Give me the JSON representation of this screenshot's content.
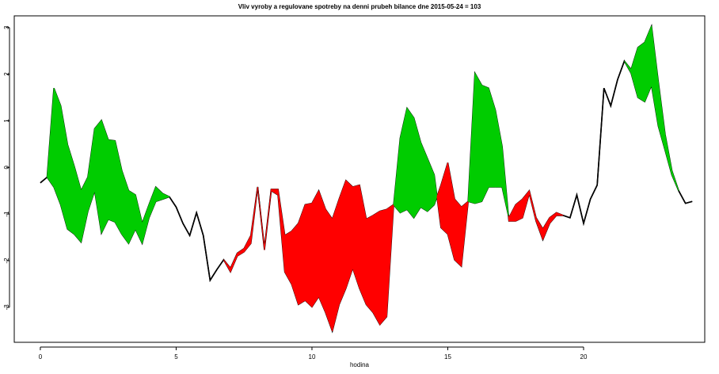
{
  "chart_data": {
    "type": "difference",
    "title": "Vliv vyroby a regulovane spotreby na denni prubeh bilance dne 2015-05-24 = 103",
    "x_label": "hodina",
    "x": [
      0,
      0.25,
      0.5,
      0.75,
      1,
      1.25,
      1.5,
      1.75,
      2,
      2.25,
      2.5,
      2.75,
      3,
      3.25,
      3.5,
      3.75,
      4,
      4.25,
      4.5,
      4.75,
      5,
      5.25,
      5.5,
      5.75,
      6,
      6.25,
      6.5,
      6.75,
      7,
      7.25,
      7.5,
      7.75,
      8,
      8.25,
      8.5,
      8.75,
      9,
      9.25,
      9.5,
      9.75,
      10,
      10.25,
      10.5,
      10.75,
      11,
      11.25,
      11.5,
      11.75,
      12,
      12.25,
      12.5,
      12.75,
      13,
      13.25,
      13.5,
      13.75,
      14,
      14.25,
      14.5,
      14.75,
      15,
      15.25,
      15.5,
      15.75,
      16,
      16.25,
      16.5,
      16.75,
      17,
      17.25,
      17.5,
      17.75,
      18,
      18.25,
      18.5,
      18.75,
      19,
      19.25,
      19.5,
      19.75,
      20,
      20.25,
      20.5,
      20.75,
      21,
      21.25,
      21.5,
      21.75,
      22,
      22.25,
      22.5,
      22.75,
      23,
      23.25,
      23.5,
      23.75,
      24
    ],
    "series": [
      {
        "color": "#000000",
        "values": [
          -0.33,
          -0.21,
          -0.42,
          -0.8,
          -1.32,
          -1.43,
          -1.6,
          -0.94,
          -0.5,
          -1.41,
          -1.11,
          -1.17,
          -1.43,
          -1.63,
          -1.32,
          -1.63,
          -1.08,
          -0.73,
          -0.68,
          -0.63,
          -0.85,
          -1.2,
          -1.46,
          -0.97,
          -1.46,
          -2.42,
          -2.19,
          -1.98,
          -2.16,
          -1.84,
          -1.74,
          -1.46,
          -0.42,
          -1.72,
          -0.47,
          -0.47,
          -1.46,
          -1.37,
          -1.2,
          -0.8,
          -0.77,
          -0.5,
          -0.9,
          -1.11,
          -0.68,
          -0.28,
          -0.42,
          -0.38,
          -1.11,
          -1.03,
          -0.94,
          -0.9,
          -0.8,
          -0.97,
          -0.9,
          -1.08,
          -0.85,
          -0.94,
          -0.8,
          -0.38,
          0.1,
          -0.68,
          -0.85,
          -0.73,
          -0.77,
          -0.73,
          -0.42,
          -0.42,
          -0.42,
          -1.08,
          -0.8,
          -0.68,
          -0.5,
          -1.08,
          -1.32,
          -1.08,
          -0.97,
          -1.03,
          -1.08,
          -0.59,
          -1.2,
          -0.68,
          -0.38,
          1.7,
          1.32,
          1.88,
          2.28,
          2.02,
          1.5,
          1.41,
          1.76,
          0.89,
          0.37,
          -0.16,
          -0.5,
          -0.77,
          -0.73
        ]
      },
      {
        "color": "#000000",
        "values": [
          -0.33,
          -0.21,
          1.7,
          1.32,
          0.49,
          0.02,
          -0.5,
          -0.21,
          0.83,
          1.01,
          0.59,
          0.57,
          -0.07,
          -0.5,
          -0.59,
          -1.2,
          -0.8,
          -0.42,
          -0.56,
          -0.63,
          -0.85,
          -1.2,
          -1.46,
          -0.97,
          -1.46,
          -2.42,
          -2.19,
          -1.98,
          -2.24,
          -1.9,
          -1.81,
          -1.63,
          -0.42,
          -1.77,
          -0.5,
          -0.59,
          -2.24,
          -2.5,
          -2.94,
          -2.85,
          -2.99,
          -2.77,
          -3.11,
          -3.51,
          -2.94,
          -2.59,
          -2.16,
          -2.59,
          -2.94,
          -3.11,
          -3.37,
          -3.2,
          -0.85,
          0.63,
          1.27,
          1.06,
          0.54,
          0.19,
          -0.16,
          -1.29,
          -1.43,
          -1.98,
          -2.12,
          -0.73,
          2.02,
          1.76,
          1.7,
          1.23,
          0.45,
          -1.15,
          -1.15,
          -1.08,
          -0.56,
          -1.15,
          -1.55,
          -1.2,
          -1.03,
          -1.03,
          -1.08,
          -0.59,
          -1.2,
          -0.68,
          -0.38,
          1.7,
          1.32,
          1.88,
          2.28,
          2.1,
          2.57,
          2.68,
          3.03,
          1.84,
          0.71,
          -0.07,
          -0.5,
          -0.77,
          -0.73
        ]
      }
    ],
    "fill_above_color": "#00cc00",
    "fill_below_color": "#ff0000",
    "xlim": [
      -0.96,
      24.46
    ],
    "ylim": [
      -3.75,
      3.25
    ],
    "xticks": [
      0,
      5,
      10,
      15,
      20
    ],
    "yticks": [
      -3,
      -2,
      -1,
      0,
      1,
      2,
      3
    ]
  }
}
